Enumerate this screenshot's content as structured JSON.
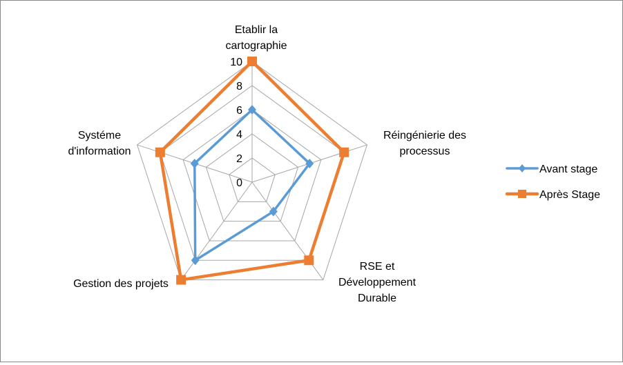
{
  "chart_data": {
    "type": "radar",
    "axes": [
      "Etablir la cartographie",
      "Réingénierie des processus",
      "RSE et Développement Durable",
      "Gestion des projets",
      "Systéme d'information"
    ],
    "axis_label_lines": [
      [
        "Etablir la",
        "cartographie"
      ],
      [
        "Réingénierie des",
        "processus"
      ],
      [
        "RSE et",
        "Développement",
        "Durable"
      ],
      [
        "Gestion des projets"
      ],
      [
        "Systéme",
        "d'information"
      ]
    ],
    "rlim": [
      0,
      10
    ],
    "ticks": [
      "0",
      "2",
      "4",
      "6",
      "8",
      "10"
    ],
    "grid": true,
    "legend_position": "right",
    "series": [
      {
        "name": "Avant stage",
        "values": [
          6,
          5,
          3,
          8,
          5
        ],
        "color": "#5B9BD5",
        "marker": "diamond"
      },
      {
        "name": "Après Stage",
        "values": [
          10,
          8,
          8,
          10,
          8
        ],
        "color": "#ED7D31",
        "marker": "square"
      }
    ]
  }
}
